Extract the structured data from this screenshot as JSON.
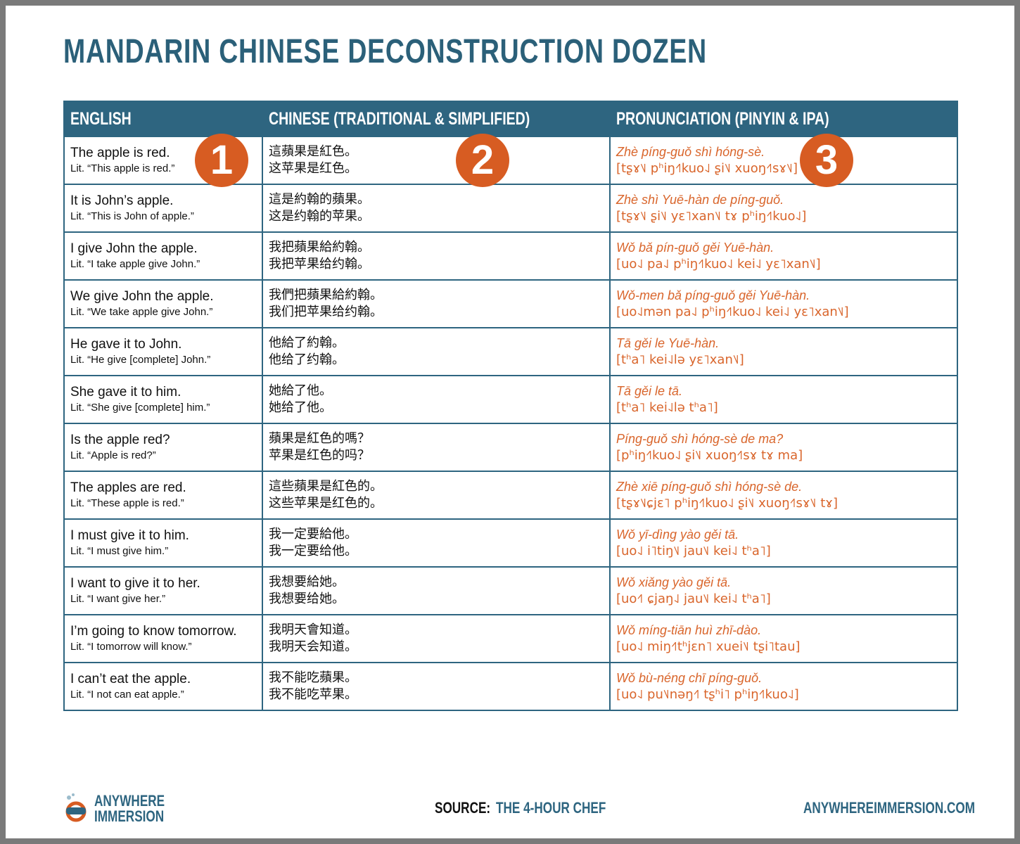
{
  "title": "MANDARIN CHINESE DECONSTRUCTION DOZEN",
  "table": {
    "headers": [
      "ENGLISH",
      "CHINESE (TRADITIONAL & SIMPLIFIED)",
      "PRONUNCIATION (PINYIN & IPA)"
    ],
    "rows": [
      {
        "english": "The apple is red.",
        "literal": "Lit. “This apple is red.”",
        "traditional": "這蘋果是紅色。",
        "simplified": "这苹果是红色。",
        "pinyin": "Zhè píng-guǒ shì hóng-sè.",
        "ipa": "[tʂɤ˥˩ pʰiŋ˧˥kuo˨˩ ʂi˥˩ xuoŋ˧˥sɤ˥˩]"
      },
      {
        "english": "It is John’s apple.",
        "literal": "Lit. “This is John of apple.”",
        "traditional": "這是約翰的蘋果。",
        "simplified": "这是约翰的苹果。",
        "pinyin": "Zhè shì Yuē-hàn de píng-guǒ.",
        "ipa": "[tʂɤ˥˩ ʂi˥˩ yɛ˥xan˥˩ tɤ pʰiŋ˧˥kuo˨˩]"
      },
      {
        "english": "I give John the apple.",
        "literal": "Lit. “I take apple give John.”",
        "traditional": "我把蘋果給約翰。",
        "simplified": "我把苹果给约翰。",
        "pinyin": "Wǒ bǎ pín-guǒ gěi Yuē-hàn.",
        "ipa": "[uo˨˩ pa˨˩ pʰiŋ˧˥kuo˨˩ kei˨˩ yɛ˥xan˥˩]"
      },
      {
        "english": "We give John the apple.",
        "literal": "Lit. “We take apple give John.”",
        "traditional": "我們把蘋果給約翰。",
        "simplified": "我们把苹果给约翰。",
        "pinyin": "Wǒ-men bǎ píng-guǒ gěi Yuē-hàn.",
        "ipa": "[uo˨˩mən pa˨˩ pʰiŋ˧˥kuo˨˩ kei˨˩ yɛ˥xan˥˩]"
      },
      {
        "english": "He gave it to John.",
        "literal": "Lit. “He give [complete] John.”",
        "traditional": "他給了約翰。",
        "simplified": "他给了约翰。",
        "pinyin": "Tā gěi le Yuē-hàn.",
        "ipa": "[tʰa˥ kei˨˩lə yɛ˥xan˥˩]"
      },
      {
        "english": "She gave it to him.",
        "literal": "Lit. “She give [complete] him.”",
        "traditional": "她給了他。",
        "simplified": "她给了他。",
        "pinyin": "Tā gěi le tā.",
        "ipa": "[tʰa˥ kei˨˩lə tʰa˥]"
      },
      {
        "english": "Is the apple red?",
        "literal": "Lit. “Apple is red?”",
        "traditional": "蘋果是紅色的嗎？",
        "simplified": "苹果是红色的吗？",
        "pinyin": "Píng-guǒ shì hóng-sè de ma?",
        "ipa": "[pʰiŋ˧˥kuo˨˩ ʂi˥˩ xuoŋ˧˥sɤ tɤ ma]"
      },
      {
        "english": "The apples are red.",
        "literal": "Lit. “These apple is red.”",
        "traditional": "這些蘋果是紅色的。",
        "simplified": "这些苹果是红色的。",
        "pinyin": "Zhè xiē píng-guǒ shì hóng-sè de.",
        "ipa": "[tʂɤ˥˩ɕjɛ˥ pʰiŋ˧˥kuo˨˩ ʂi˥˩ xuoŋ˧˥sɤ˥˩ tɤ]"
      },
      {
        "english": "I must give it to him.",
        "literal": "Lit. “I must give him.”",
        "traditional": "我一定要給他。",
        "simplified": "我一定要给他。",
        "pinyin": "Wǒ yī-dìng yào gěi tā.",
        "ipa": "[uo˨˩ i˥tiŋ˥˩ jau˥˩ kei˨˩ tʰa˥]"
      },
      {
        "english": "I want to give it to her.",
        "literal": "Lit. “I want give her.”",
        "traditional": "我想要給她。",
        "simplified": "我想要给她。",
        "pinyin": "Wǒ xiǎng yào gěi tā.",
        "ipa": "[uo˧˥ ɕjaŋ˨˩ jau˥˩ kei˨˩ tʰa˥]"
      },
      {
        "english": "I’m going to know tomorrow.",
        "literal": "Lit. “I tomorrow will know.”",
        "traditional": "我明天會知道。",
        "simplified": "我明天会知道。",
        "pinyin": "Wǒ míng-tiān huì zhī-dào.",
        "ipa": "[uo˨˩ miŋ˧˥tʰjɛn˥ xuei˥˩ tʂi˥tau]"
      },
      {
        "english": "I can’t eat the apple.",
        "literal": "Lit. “I not can eat apple.”",
        "traditional": "我不能吃蘋果。",
        "simplified": "我不能吃苹果。",
        "pinyin": "Wǒ bù-néng chī píng-guǒ.",
        "ipa": "[uo˨˩ pu˥˩nəŋ˧˥ tʂʰi˥ pʰiŋ˧˥kuo˨˩]"
      }
    ]
  },
  "markers": [
    "1",
    "2",
    "3"
  ],
  "footer": {
    "logo_top": "ANYWHERE",
    "logo_bottom": "IMMERSION",
    "source_label": "SOURCE:",
    "source": "THE 4-HOUR CHEF",
    "website": "ANYWHEREIMMERSION.COM"
  }
}
